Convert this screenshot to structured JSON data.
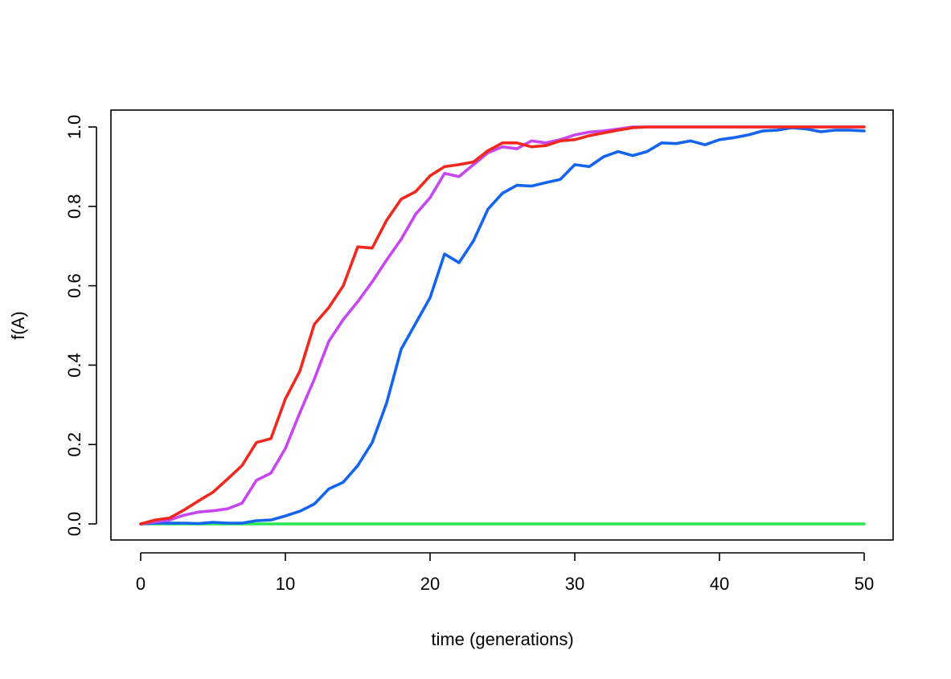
{
  "chart_data": {
    "type": "line",
    "title": "",
    "xlabel": "time (generations)",
    "ylabel": "f(A)",
    "xlim": [
      0,
      50
    ],
    "ylim": [
      0,
      1
    ],
    "xticks": [
      0,
      10,
      20,
      30,
      40,
      50
    ],
    "yticks": [
      0.0,
      0.2,
      0.4,
      0.6,
      0.8,
      1.0
    ],
    "xtick_labels": [
      "0",
      "10",
      "20",
      "30",
      "40",
      "50"
    ],
    "ytick_labels": [
      "0.0",
      "0.2",
      "0.4",
      "0.6",
      "0.8",
      "1.0"
    ],
    "grid": false,
    "legend": "none",
    "x": [
      0,
      1,
      2,
      3,
      4,
      5,
      6,
      7,
      8,
      9,
      10,
      11,
      12,
      13,
      14,
      15,
      16,
      17,
      18,
      19,
      20,
      21,
      22,
      23,
      24,
      25,
      26,
      27,
      28,
      29,
      30,
      31,
      32,
      33,
      34,
      35,
      36,
      37,
      38,
      39,
      40,
      41,
      42,
      43,
      44,
      45,
      46,
      47,
      48,
      49,
      50
    ],
    "series": [
      {
        "color": "#f0281e",
        "values": [
          0.0,
          0.01,
          0.015,
          0.035,
          0.058,
          0.08,
          0.113,
          0.147,
          0.205,
          0.215,
          0.315,
          0.385,
          0.503,
          0.545,
          0.6,
          0.698,
          0.695,
          0.765,
          0.818,
          0.837,
          0.877,
          0.9,
          0.905,
          0.912,
          0.94,
          0.96,
          0.96,
          0.95,
          0.953,
          0.965,
          0.968,
          0.978,
          0.985,
          0.992,
          0.998,
          1.0,
          1.0,
          1.0,
          1.0,
          1.0,
          1.0,
          1.0,
          1.0,
          1.0,
          1.0,
          1.0,
          1.0,
          1.0,
          1.0,
          1.0,
          1.0
        ]
      },
      {
        "color": "#c846f0",
        "values": [
          0.0,
          0.005,
          0.01,
          0.022,
          0.03,
          0.033,
          0.038,
          0.052,
          0.11,
          0.128,
          0.19,
          0.28,
          0.365,
          0.46,
          0.515,
          0.56,
          0.61,
          0.665,
          0.717,
          0.78,
          0.822,
          0.883,
          0.875,
          0.905,
          0.935,
          0.95,
          0.945,
          0.965,
          0.96,
          0.968,
          0.98,
          0.987,
          0.99,
          0.995,
          1.0,
          1.0,
          1.0,
          1.0,
          1.0,
          1.0,
          1.0,
          1.0,
          1.0,
          1.0,
          1.0,
          1.0,
          1.0,
          1.0,
          1.0,
          1.0,
          1.0
        ]
      },
      {
        "color": "#1464f0",
        "values": [
          0.0,
          0.002,
          0.002,
          0.002,
          0.001,
          0.004,
          0.002,
          0.002,
          0.008,
          0.01,
          0.02,
          0.032,
          0.05,
          0.088,
          0.105,
          0.147,
          0.205,
          0.305,
          0.44,
          0.505,
          0.57,
          0.68,
          0.658,
          0.713,
          0.793,
          0.833,
          0.853,
          0.851,
          0.86,
          0.868,
          0.905,
          0.9,
          0.925,
          0.938,
          0.928,
          0.938,
          0.96,
          0.958,
          0.965,
          0.955,
          0.968,
          0.973,
          0.98,
          0.99,
          0.992,
          0.998,
          0.995,
          0.988,
          0.992,
          0.992,
          0.99
        ]
      },
      {
        "color": "#28e650",
        "values": [
          0,
          0,
          0,
          0,
          0,
          0,
          0,
          0,
          0,
          0,
          0,
          0,
          0,
          0,
          0,
          0,
          0,
          0,
          0,
          0,
          0,
          0,
          0,
          0,
          0,
          0,
          0,
          0,
          0,
          0,
          0,
          0,
          0,
          0,
          0,
          0,
          0,
          0,
          0,
          0,
          0,
          0,
          0,
          0,
          0,
          0,
          0,
          0,
          0,
          0,
          0
        ]
      }
    ]
  }
}
